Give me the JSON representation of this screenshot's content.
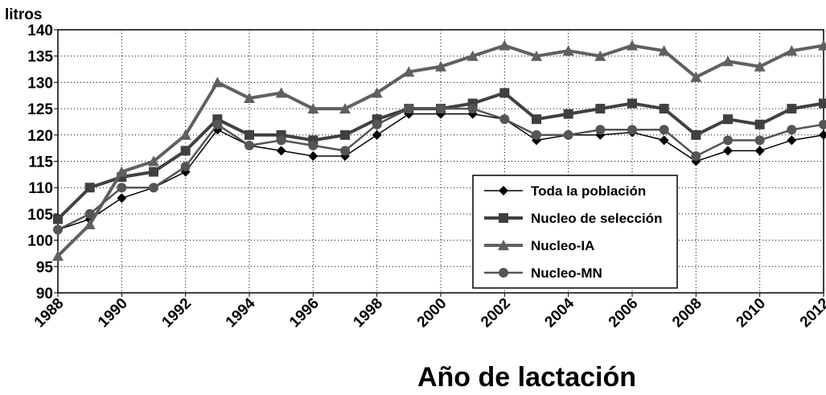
{
  "chart_data": {
    "type": "line",
    "y_label": "litros",
    "x_label": "Año de lactación",
    "x": [
      1988,
      1989,
      1990,
      1991,
      1992,
      1993,
      1994,
      1995,
      1996,
      1997,
      1998,
      1999,
      2000,
      2001,
      2002,
      2003,
      2004,
      2005,
      2006,
      2007,
      2008,
      2009,
      2010,
      2011,
      2012
    ],
    "xlim": [
      1988,
      2012
    ],
    "xticks": [
      1988,
      1990,
      1992,
      1994,
      1996,
      1998,
      2000,
      2002,
      2004,
      2006,
      2008,
      2010,
      2012
    ],
    "ylim": [
      90,
      140
    ],
    "yticks": [
      90,
      95,
      100,
      105,
      110,
      115,
      120,
      125,
      130,
      135,
      140
    ],
    "grid": true,
    "legend": "lower-right",
    "series": [
      {
        "name": "Toda la población",
        "color": "#000000",
        "marker": "diamond",
        "values": [
          102,
          104,
          108,
          110,
          113,
          121,
          118,
          117,
          116,
          116,
          120,
          124,
          124,
          124,
          123,
          119,
          120,
          120,
          120.5,
          119,
          115,
          117,
          117,
          119,
          120
        ]
      },
      {
        "name": "Nucleo de selección",
        "color": "#404040",
        "marker": "square",
        "values": [
          104,
          110,
          112,
          113,
          117,
          123,
          120,
          120,
          119,
          120,
          123,
          125,
          125,
          126,
          128,
          123,
          124,
          125,
          126,
          125,
          120,
          123,
          122,
          125,
          126
        ]
      },
      {
        "name": "Nucleo-IA",
        "color": "#606060",
        "marker": "triangle",
        "values": [
          97,
          103,
          113,
          115,
          120,
          130,
          127,
          128,
          125,
          125,
          128,
          132,
          133,
          135,
          137,
          135,
          136,
          135,
          137,
          136,
          131,
          134,
          133,
          136,
          137
        ]
      },
      {
        "name": "Nucleo-MN",
        "color": "#555555",
        "marker": "circle",
        "values": [
          102,
          105,
          110,
          110,
          114,
          122,
          118,
          119,
          118,
          117,
          122,
          125,
          125,
          125,
          123,
          120,
          120,
          121,
          121,
          121,
          116,
          119,
          119,
          121,
          122
        ]
      }
    ]
  }
}
